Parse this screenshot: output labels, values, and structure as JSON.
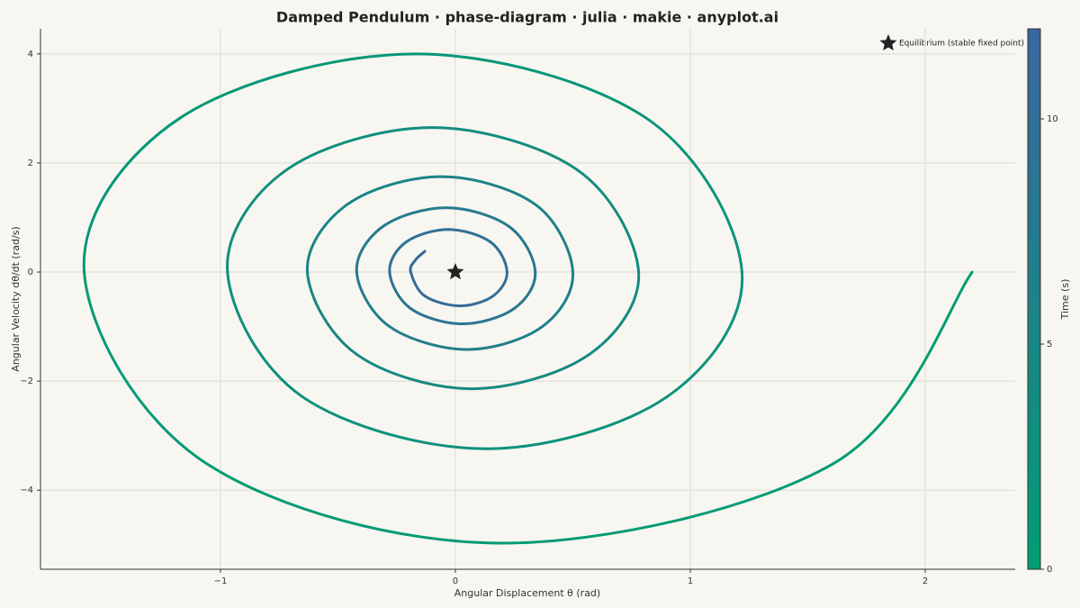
{
  "chart_data": {
    "type": "phase",
    "title": "Damped Pendulum · phase-diagram · julia · makie · anyplot.ai",
    "x_label": "Angular Displacement θ (rad)",
    "y_label": "Angular Velocity dθ/dt (rad/s)",
    "xlim": [
      -1.766,
      2.383
    ],
    "ylim": [
      -5.45,
      4.46
    ],
    "xticks": [
      {
        "value": -1,
        "label": "−1"
      },
      0,
      1,
      2
    ],
    "yticks": [
      {
        "value": -4,
        "label": "−4"
      },
      {
        "value": -2,
        "label": "−2"
      },
      0,
      2,
      4
    ],
    "grid": true,
    "series": [
      {
        "x": [
          2.2,
          1.61,
          0.2,
          -1.06,
          -1.58,
          -1.17,
          -0.17,
          0.81,
          1.22,
          0.9,
          0.13,
          -0.65,
          -0.97,
          -0.72,
          -0.1,
          0.52,
          0.78,
          0.57,
          0.07,
          -0.42,
          -0.63,
          -0.46,
          -0.06,
          0.34,
          0.5,
          0.37,
          0.05,
          -0.28,
          -0.42,
          -0.31,
          -0.04,
          0.23,
          0.34,
          0.25,
          0.03,
          -0.19,
          -0.28,
          -0.21,
          -0.03,
          0.15,
          0.22,
          0.16,
          0.02,
          -0.13,
          -0.19,
          -0.17,
          -0.13
        ],
        "y": [
          0,
          -3.51,
          -4.97,
          -3.51,
          0,
          2.83,
          4.0,
          2.83,
          0,
          -2.29,
          -3.24,
          -2.29,
          0,
          1.87,
          2.65,
          1.87,
          0,
          -1.51,
          -2.14,
          -1.51,
          0,
          1.24,
          1.75,
          1.24,
          0,
          -1.0,
          -1.42,
          -1.0,
          0,
          0.83,
          1.18,
          0.83,
          0,
          -0.67,
          -0.95,
          -0.67,
          0,
          0.55,
          0.78,
          0.55,
          0,
          -0.44,
          -0.62,
          -0.44,
          0,
          0.22,
          0.38
        ],
        "t": [
          0,
          0.28,
          0.55,
          0.8,
          1.05,
          1.3,
          1.55,
          1.8,
          2.05,
          2.3,
          2.55,
          2.8,
          3.05,
          3.3,
          3.55,
          3.8,
          4.05,
          4.3,
          4.55,
          4.8,
          5.05,
          5.3,
          5.55,
          5.8,
          6.05,
          6.3,
          6.55,
          6.8,
          7.05,
          7.3,
          7.55,
          7.8,
          8.05,
          8.3,
          8.55,
          8.8,
          9.05,
          9.3,
          9.55,
          9.8,
          10.05,
          10.3,
          10.55,
          10.8,
          11.05,
          11.5,
          12
        ]
      }
    ],
    "colormap": [
      "#009e73",
      "#3b659f"
    ],
    "colorbar": {
      "label": "Time (s)",
      "lim": [
        0,
        12
      ],
      "ticks": [
        0,
        5,
        10
      ]
    },
    "equilibrium": {
      "label": "Equilibrium (stable fixed point)",
      "x": 0,
      "y": 0,
      "color": "#222222"
    }
  }
}
